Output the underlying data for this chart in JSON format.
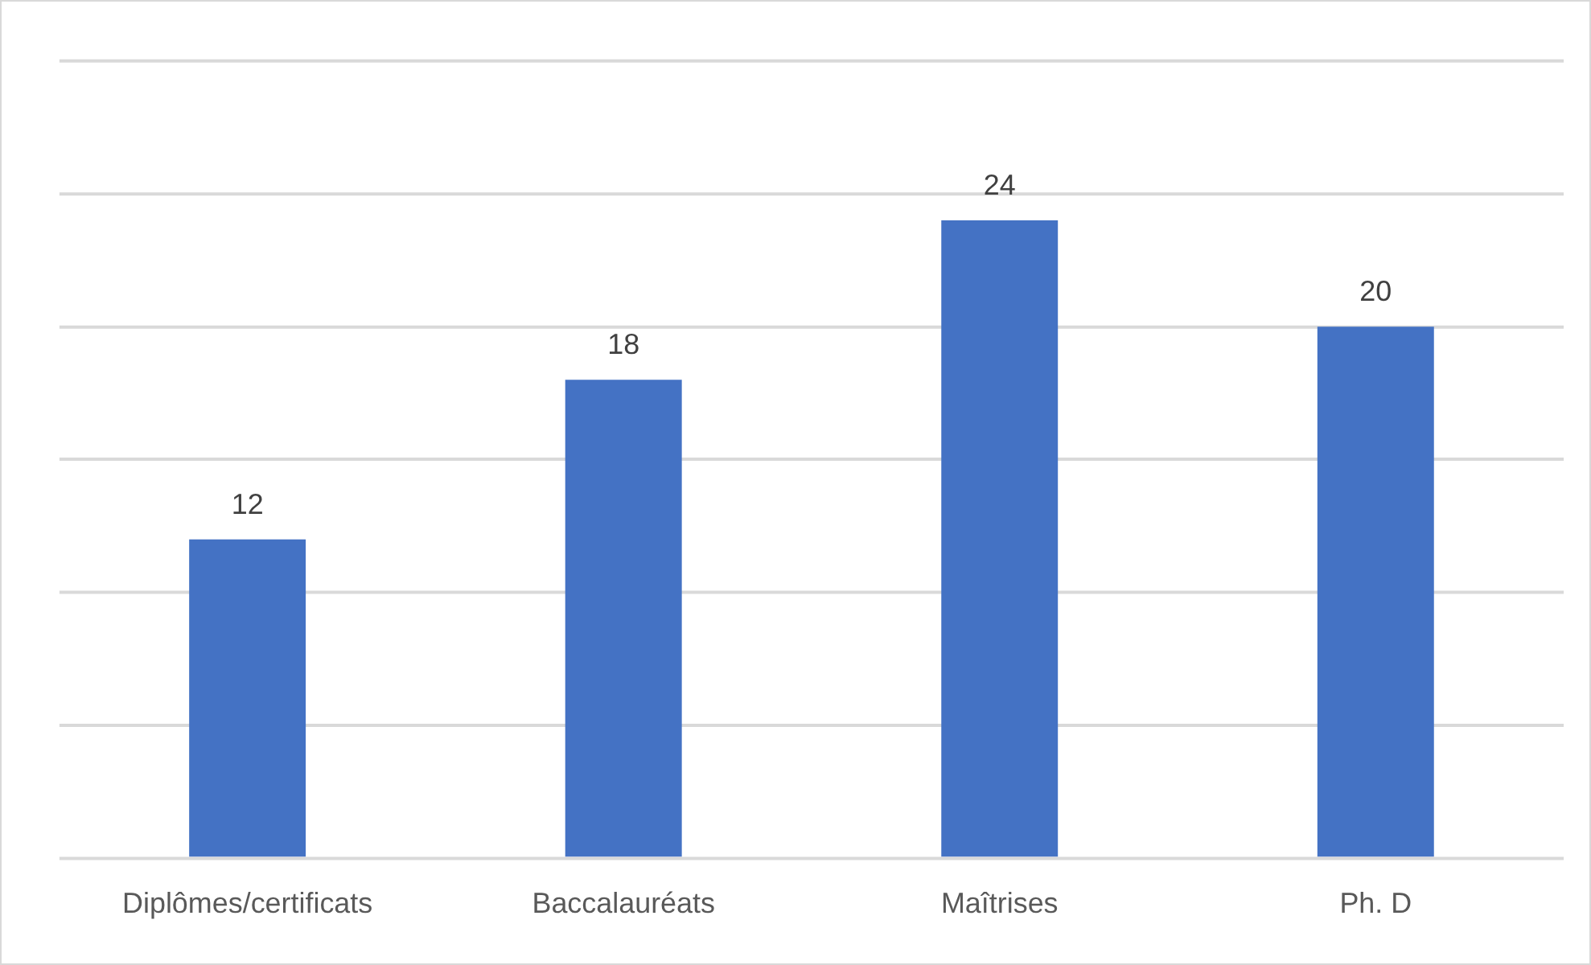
{
  "chart_data": {
    "type": "bar",
    "categories": [
      "Diplômes/certificats",
      "Baccalauréats",
      "Maîtrises",
      "Ph. D"
    ],
    "values": [
      12,
      18,
      24,
      20
    ],
    "color": "#4472c4",
    "ylim": [
      0,
      30
    ],
    "yticks": [
      {
        "value": 0,
        "label": null
      },
      {
        "value": 5,
        "label": null
      },
      {
        "value": 10,
        "label": null
      },
      {
        "value": 15,
        "label": null
      },
      {
        "value": 20,
        "label": null
      },
      {
        "value": 25,
        "label": null
      },
      {
        "value": 30,
        "label": null
      }
    ],
    "grid": "y",
    "tick_labels": "x",
    "data_labels": true,
    "legend": false
  }
}
